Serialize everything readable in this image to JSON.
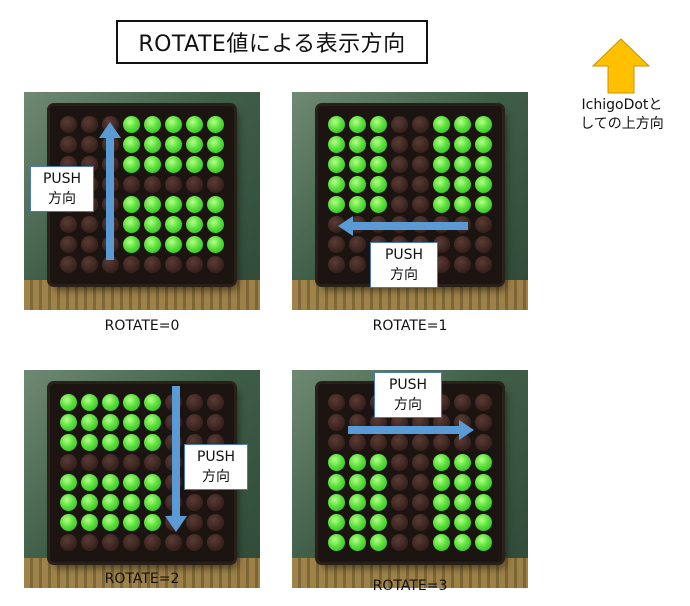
{
  "title": "ROTATE値による表示方向",
  "up_caption_line1": "IchigoDotと",
  "up_caption_line2": "しての上方向",
  "colors": {
    "arrow_orange": "#ffc000",
    "push_arrow_blue": "#5b9bd5",
    "led_on": "#58e03a",
    "led_off": "#3b2420"
  },
  "panels": [
    {
      "caption": "ROTATE=0",
      "push_line1": "PUSH",
      "push_line2": "方向",
      "arrow_direction": "up",
      "leds": [
        "00011111",
        "00011111",
        "00011111",
        "00000000",
        "00011111",
        "00011111",
        "00011111",
        "00000000"
      ]
    },
    {
      "caption": "ROTATE=1",
      "push_line1": "PUSH",
      "push_line2": "方向",
      "arrow_direction": "left",
      "leds": [
        "11100111",
        "11100111",
        "11100111",
        "11100111",
        "11100111",
        "00000000",
        "00000000",
        "00000000"
      ]
    },
    {
      "caption": "ROTATE=2",
      "push_line1": "PUSH",
      "push_line2": "方向",
      "arrow_direction": "down",
      "leds": [
        "11111000",
        "11111000",
        "11111000",
        "00000000",
        "11111000",
        "11111000",
        "11111000",
        "00000000"
      ]
    },
    {
      "caption": "ROTATE=3",
      "push_line1": "PUSH",
      "push_line2": "方向",
      "arrow_direction": "right",
      "leds": [
        "00000000",
        "00000000",
        "00000000",
        "11100111",
        "11100111",
        "11100111",
        "11100111",
        "11100111"
      ]
    }
  ]
}
